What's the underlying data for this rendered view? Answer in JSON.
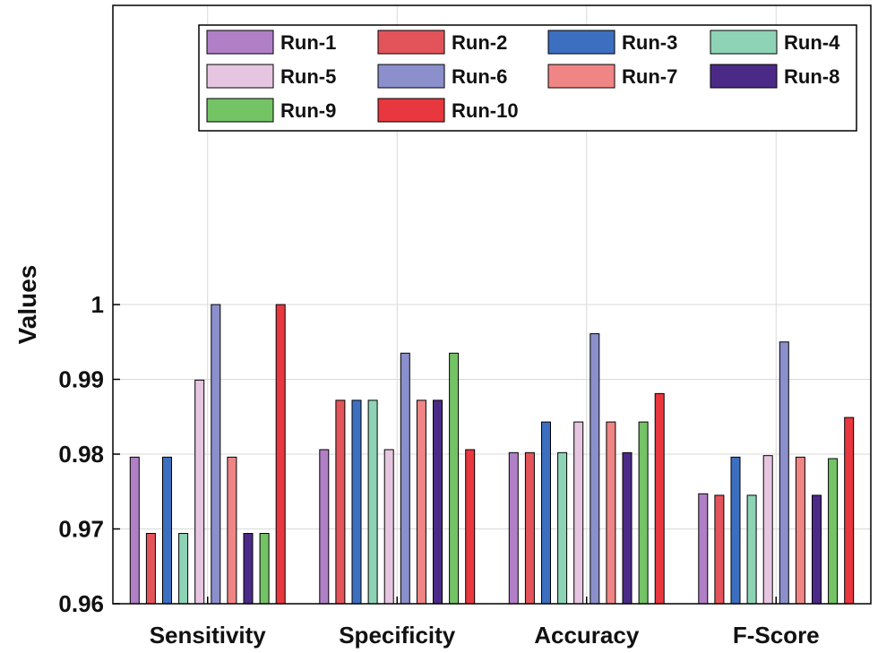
{
  "chart_data": {
    "type": "bar",
    "title": "",
    "xlabel": "",
    "ylabel": "Values",
    "ylim": [
      0.96,
      1.0
    ],
    "yticks": [
      0.96,
      0.97,
      0.98,
      0.99,
      1
    ],
    "ytick_labels": [
      "0.96",
      "0.97",
      "0.98",
      "0.99",
      "1"
    ],
    "grid": true,
    "legend_position": "top-right",
    "categories": [
      "Sensitivity",
      "Specificity",
      "Accuracy",
      "F-Score"
    ],
    "series": [
      {
        "name": "Run-1",
        "color": "#b07fc6",
        "values": [
          0.9796,
          0.9806,
          0.9802,
          0.9747
        ]
      },
      {
        "name": "Run-2",
        "color": "#e3545a",
        "values": [
          0.9694,
          0.9872,
          0.9802,
          0.9745
        ]
      },
      {
        "name": "Run-3",
        "color": "#3c6fc0",
        "values": [
          0.9796,
          0.9872,
          0.9843,
          0.9796
        ]
      },
      {
        "name": "Run-4",
        "color": "#8ed3b6",
        "values": [
          0.9694,
          0.9872,
          0.9802,
          0.9745
        ]
      },
      {
        "name": "Run-5",
        "color": "#e6c5e0",
        "values": [
          0.9899,
          0.9806,
          0.9843,
          0.9798
        ]
      },
      {
        "name": "Run-6",
        "color": "#8b8fcb",
        "values": [
          1.0,
          0.9935,
          0.9961,
          0.995
        ]
      },
      {
        "name": "Run-7",
        "color": "#f08585",
        "values": [
          0.9796,
          0.9872,
          0.9843,
          0.9796
        ]
      },
      {
        "name": "Run-8",
        "color": "#4b2a87",
        "values": [
          0.9694,
          0.9872,
          0.9802,
          0.9745
        ]
      },
      {
        "name": "Run-9",
        "color": "#74c365",
        "values": [
          0.9694,
          0.9935,
          0.9843,
          0.9794
        ]
      },
      {
        "name": "Run-10",
        "color": "#e8373e",
        "values": [
          1.0,
          0.9806,
          0.9881,
          0.9849
        ]
      }
    ]
  }
}
